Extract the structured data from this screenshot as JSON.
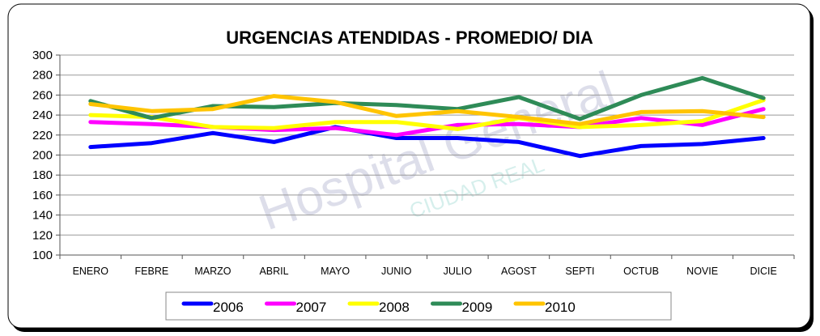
{
  "chart_data": {
    "type": "line",
    "title": "URGENCIAS ATENDIDAS - PROMEDIO/ DIA",
    "xlabel": "",
    "ylabel": "",
    "ylim": [
      100,
      300
    ],
    "yticks": [
      100,
      120,
      140,
      160,
      180,
      200,
      220,
      240,
      260,
      280,
      300
    ],
    "grid": true,
    "legend_position": "bottom",
    "categories": [
      "ENERO",
      "FEBRE",
      "MARZO",
      "ABRIL",
      "MAYO",
      "JUNIO",
      "JULIO",
      "AGOST",
      "SEPTI",
      "OCTUB",
      "NOVIE",
      "DICIE"
    ],
    "series": [
      {
        "name": "2006",
        "color": "#0000ff",
        "values": [
          208,
          212,
          222,
          213,
          228,
          217,
          217,
          213,
          199,
          209,
          211,
          217
        ]
      },
      {
        "name": "2007",
        "color": "#ff00ff",
        "values": [
          233,
          231,
          228,
          225,
          227,
          220,
          230,
          231,
          228,
          237,
          230,
          246
        ]
      },
      {
        "name": "2008",
        "color": "#ffff00",
        "values": [
          240,
          238,
          228,
          227,
          233,
          233,
          226,
          237,
          228,
          230,
          234,
          255
        ]
      },
      {
        "name": "2009",
        "color": "#2e8b57",
        "values": [
          254,
          237,
          249,
          248,
          252,
          250,
          246,
          258,
          236,
          260,
          277,
          257
        ]
      },
      {
        "name": "2010",
        "color": "#ffc400",
        "values": [
          251,
          244,
          246,
          259,
          253,
          239,
          244,
          238,
          231,
          243,
          244,
          238
        ]
      }
    ]
  },
  "watermark": {
    "line1": "Hospital General",
    "line2": "CIUDAD REAL"
  }
}
